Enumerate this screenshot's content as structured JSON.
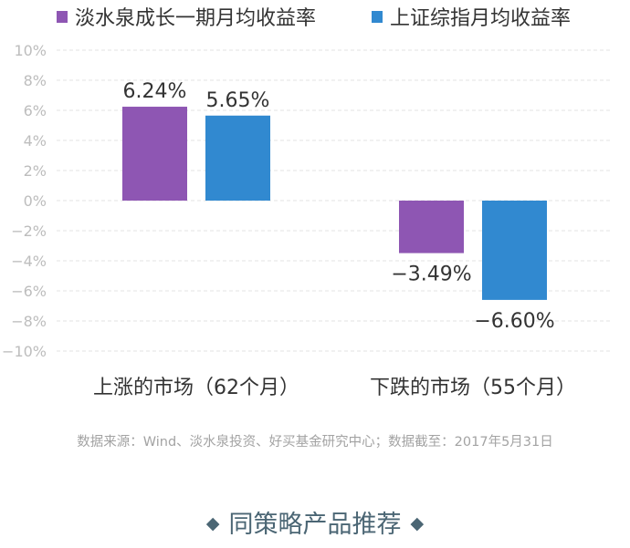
{
  "chart_data": {
    "type": "bar",
    "categories": [
      "上涨的市场（62个月）",
      "下跌的市场（55个月）"
    ],
    "series": [
      {
        "name": "淡水泉成长一期月均收益率",
        "values": [
          6.24,
          -3.49
        ],
        "labels": [
          "6.24%",
          "−3.49%"
        ],
        "color": "#8e56b3"
      },
      {
        "name": "上证综指月均收益率",
        "values": [
          5.65,
          -6.6
        ],
        "labels": [
          "5.65%",
          "−6.60%"
        ],
        "color": "#3189d0"
      }
    ],
    "ylim": [
      -10,
      10
    ],
    "yticks": [
      {
        "value": 10,
        "label": "10%"
      },
      {
        "value": 8,
        "label": "8%"
      },
      {
        "value": 6,
        "label": "6%"
      },
      {
        "value": 4,
        "label": "4%"
      },
      {
        "value": 2,
        "label": "2%"
      },
      {
        "value": 0,
        "label": "0%"
      },
      {
        "value": -2,
        "label": "−2%"
      },
      {
        "value": -4,
        "label": "−4%"
      },
      {
        "value": -6,
        "label": "−6%"
      },
      {
        "value": -8,
        "label": "−8%"
      },
      {
        "value": -10,
        "label": "−10%"
      }
    ],
    "grid": true,
    "legend_position": "top",
    "title": "",
    "xlabel": "",
    "ylabel": ""
  },
  "source_note": "数据来源：Wind、淡水泉投资、好买基金研究中心；数据截至：2017年5月31日",
  "footer": {
    "title": "同策略产品推荐",
    "left_symbol": "◆",
    "right_symbol": "◆"
  },
  "colors": {
    "grid": "#e3e3e3",
    "axis_text": "#bdbdbd",
    "label_text": "#333333",
    "footer_text": "#4b6674"
  }
}
